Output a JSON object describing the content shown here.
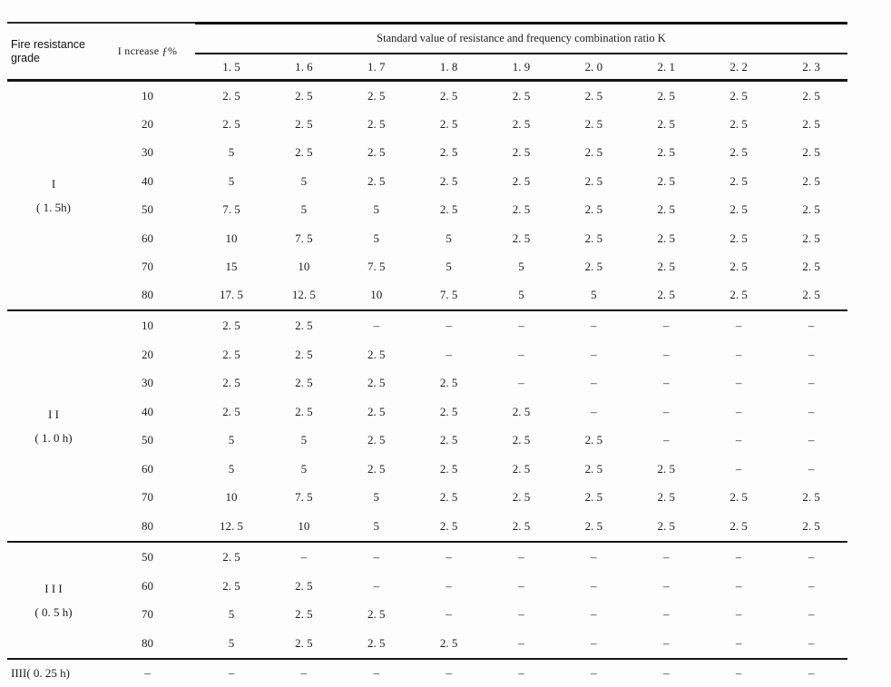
{
  "table": {
    "grade_header_line1": "Fire resistance",
    "grade_header_line2": "grade",
    "increase_header": "I ncrease ƒ%",
    "k_header": "Standard value of resistance and frequency combination ratio K",
    "k_columns": [
      "1. 5",
      "1. 6",
      "1. 7",
      "1. 8",
      "1. 9",
      "2. 0",
      "2. 1",
      "2. 2",
      "2. 3"
    ],
    "groups": [
      {
        "grade": "I",
        "duration": "( 1. 5h)",
        "rows": [
          {
            "increase": "10",
            "values": [
              "2. 5",
              "2. 5",
              "2. 5",
              "2. 5",
              "2. 5",
              "2. 5",
              "2. 5",
              "2. 5",
              "2. 5"
            ]
          },
          {
            "increase": "20",
            "values": [
              "2. 5",
              "2. 5",
              "2. 5",
              "2. 5",
              "2. 5",
              "2. 5",
              "2. 5",
              "2. 5",
              "2. 5"
            ]
          },
          {
            "increase": "30",
            "values": [
              "5",
              "2. 5",
              "2. 5",
              "2. 5",
              "2. 5",
              "2. 5",
              "2. 5",
              "2. 5",
              "2. 5"
            ]
          },
          {
            "increase": "40",
            "values": [
              "5",
              "5",
              "2. 5",
              "2. 5",
              "2. 5",
              "2. 5",
              "2. 5",
              "2. 5",
              "2. 5"
            ]
          },
          {
            "increase": "50",
            "values": [
              "7. 5",
              "5",
              "5",
              "2. 5",
              "2. 5",
              "2. 5",
              "2. 5",
              "2. 5",
              "2. 5"
            ]
          },
          {
            "increase": "60",
            "values": [
              "10",
              "7. 5",
              "5",
              "5",
              "2. 5",
              "2. 5",
              "2. 5",
              "2. 5",
              "2. 5"
            ]
          },
          {
            "increase": "70",
            "values": [
              "15",
              "10",
              "7. 5",
              "5",
              "5",
              "2. 5",
              "2. 5",
              "2. 5",
              "2. 5"
            ]
          },
          {
            "increase": "80",
            "values": [
              "17. 5",
              "12. 5",
              "10",
              "7. 5",
              "5",
              "5",
              "2. 5",
              "2. 5",
              "2. 5"
            ]
          }
        ]
      },
      {
        "grade": "I I",
        "duration": "( 1. 0 h)",
        "rows": [
          {
            "increase": "10",
            "values": [
              "2. 5",
              "2. 5",
              "–",
              "–",
              "–",
              "–",
              "–",
              "–",
              "–"
            ]
          },
          {
            "increase": "20",
            "values": [
              "2. 5",
              "2. 5",
              "2. 5",
              "–",
              "–",
              "–",
              "–",
              "–",
              "–"
            ]
          },
          {
            "increase": "30",
            "values": [
              "2. 5",
              "2. 5",
              "2. 5",
              "2. 5",
              "–",
              "–",
              "–",
              "–",
              "–"
            ]
          },
          {
            "increase": "40",
            "values": [
              "2. 5",
              "2. 5",
              "2. 5",
              "2. 5",
              "2. 5",
              "–",
              "–",
              "–",
              "–"
            ]
          },
          {
            "increase": "50",
            "values": [
              "5",
              "5",
              "2. 5",
              "2. 5",
              "2. 5",
              "2. 5",
              "–",
              "–",
              "–"
            ]
          },
          {
            "increase": "60",
            "values": [
              "5",
              "5",
              "2. 5",
              "2. 5",
              "2. 5",
              "2. 5",
              "2. 5",
              "–",
              "–"
            ]
          },
          {
            "increase": "70",
            "values": [
              "10",
              "7. 5",
              "5",
              "2. 5",
              "2. 5",
              "2. 5",
              "2. 5",
              "2. 5",
              "2. 5"
            ]
          },
          {
            "increase": "80",
            "values": [
              "12. 5",
              "10",
              "5",
              "2. 5",
              "2. 5",
              "2. 5",
              "2. 5",
              "2. 5",
              "2. 5"
            ]
          }
        ]
      },
      {
        "grade": "I I I",
        "duration": "( 0. 5 h)",
        "rows": [
          {
            "increase": "50",
            "values": [
              "2. 5",
              "–",
              "–",
              "–",
              "–",
              "–",
              "–",
              "–",
              "–"
            ]
          },
          {
            "increase": "60",
            "values": [
              "2. 5",
              "2. 5",
              "–",
              "–",
              "–",
              "–",
              "–",
              "–",
              "–"
            ]
          },
          {
            "increase": "70",
            "values": [
              "5",
              "2. 5",
              "2. 5",
              "–",
              "–",
              "–",
              "–",
              "–",
              "–"
            ]
          },
          {
            "increase": "80",
            "values": [
              "5",
              "2. 5",
              "2. 5",
              "2. 5",
              "–",
              "–",
              "–",
              "–",
              "–"
            ]
          }
        ]
      },
      {
        "grade": "IIII( 0. 25 h)",
        "duration": "",
        "rows": [
          {
            "increase": "–",
            "values": [
              "–",
              "–",
              "–",
              "–",
              "–",
              "–",
              "–",
              "–",
              "–"
            ]
          }
        ]
      }
    ]
  }
}
